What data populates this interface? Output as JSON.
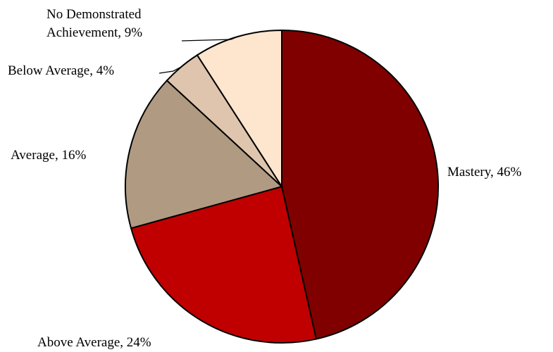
{
  "chart_data": {
    "type": "pie",
    "slices": [
      {
        "name": "Mastery",
        "value": 46,
        "label": "Mastery, 46%",
        "color": "#800000"
      },
      {
        "name": "Above Average",
        "value": 24,
        "label": "Above Average, 24%",
        "color": "#C00000"
      },
      {
        "name": "Average",
        "value": 16,
        "label": "Average, 16%",
        "color": "#B09A81"
      },
      {
        "name": "Below Average",
        "value": 4,
        "label": "Below Average, 4%",
        "color": "#DFC5AE"
      },
      {
        "name": "No Demonstrated Achievement",
        "value": 9,
        "label_lines": [
          "No Demonstrated",
          "Achievement, 9%"
        ],
        "color": "#FDE5CE"
      }
    ],
    "legend": "none"
  }
}
